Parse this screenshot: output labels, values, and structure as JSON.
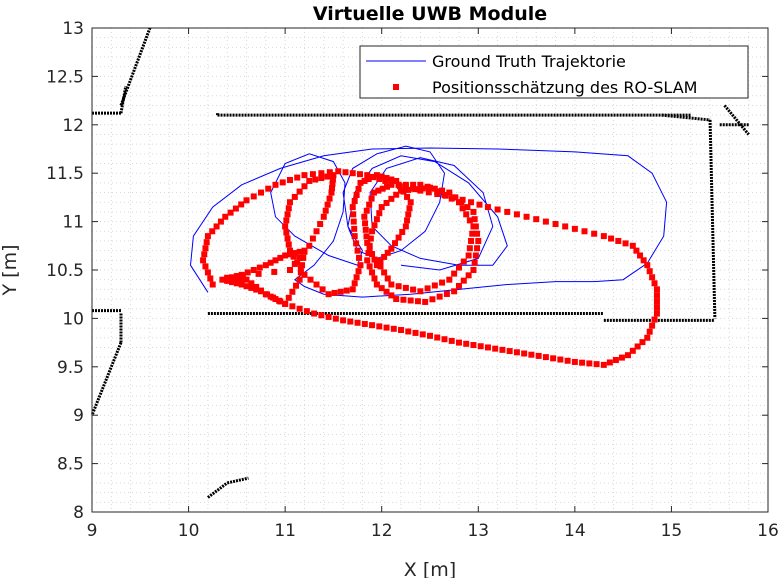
{
  "chart_data": {
    "type": "line",
    "title": "Virtuelle UWB Module",
    "xlabel": "X [m]",
    "ylabel": "Y [m]",
    "xlim": [
      9,
      16
    ],
    "ylim": [
      8,
      13
    ],
    "xticks": [
      "9",
      "10",
      "11",
      "12",
      "13",
      "14",
      "15",
      "16"
    ],
    "yticks": [
      "8",
      "8.5",
      "9",
      "9.5",
      "10",
      "10.5",
      "11",
      "11.5",
      "12",
      "12.5",
      "13"
    ],
    "grid": true,
    "legend_position": "top-right",
    "colors": {
      "ground_truth": "#0000ff",
      "estimate": "#ff0000",
      "map": "#000000"
    },
    "series": [
      {
        "name": "Ground Truth Trajektorie",
        "style": "line",
        "points": [
          [
            10.2,
            10.27
          ],
          [
            10.02,
            10.55
          ],
          [
            10.05,
            10.85
          ],
          [
            10.25,
            11.15
          ],
          [
            10.55,
            11.38
          ],
          [
            10.95,
            11.55
          ],
          [
            11.4,
            11.68
          ],
          [
            11.9,
            11.75
          ],
          [
            12.5,
            11.76
          ],
          [
            13.2,
            11.75
          ],
          [
            14.0,
            11.72
          ],
          [
            14.55,
            11.68
          ],
          [
            14.8,
            11.5
          ],
          [
            14.95,
            11.2
          ],
          [
            14.92,
            10.85
          ],
          [
            14.75,
            10.57
          ],
          [
            14.5,
            10.4
          ],
          [
            14.2,
            10.38
          ],
          [
            13.8,
            10.38
          ],
          [
            13.3,
            10.35
          ],
          [
            12.8,
            10.3
          ],
          [
            12.3,
            10.25
          ],
          [
            11.8,
            10.22
          ],
          [
            11.4,
            10.25
          ],
          [
            11.2,
            10.33
          ],
          [
            11.1,
            10.4
          ],
          [
            11.3,
            10.55
          ],
          [
            11.5,
            10.8
          ],
          [
            11.6,
            11.1
          ],
          [
            11.62,
            11.4
          ],
          [
            11.5,
            11.62
          ],
          [
            11.25,
            11.7
          ],
          [
            11.0,
            11.6
          ],
          [
            10.85,
            11.3
          ],
          [
            10.9,
            11.05
          ],
          [
            11.1,
            10.85
          ],
          [
            11.45,
            10.65
          ],
          [
            11.75,
            10.55
          ],
          [
            11.8,
            10.7
          ],
          [
            11.65,
            10.95
          ],
          [
            11.6,
            11.3
          ],
          [
            11.7,
            11.55
          ],
          [
            11.95,
            11.7
          ],
          [
            12.25,
            11.78
          ],
          [
            12.5,
            11.72
          ],
          [
            12.65,
            11.5
          ],
          [
            12.6,
            11.2
          ],
          [
            12.45,
            10.9
          ],
          [
            12.2,
            10.7
          ],
          [
            11.95,
            10.62
          ],
          [
            11.75,
            10.7
          ],
          [
            11.65,
            10.95
          ],
          [
            11.72,
            11.3
          ],
          [
            11.9,
            11.55
          ],
          [
            12.2,
            11.68
          ],
          [
            12.55,
            11.62
          ],
          [
            12.9,
            11.4
          ],
          [
            13.2,
            11.05
          ],
          [
            13.3,
            10.75
          ],
          [
            13.15,
            10.55
          ],
          [
            12.8,
            10.55
          ],
          [
            12.4,
            10.62
          ],
          [
            12.1,
            10.75
          ],
          [
            11.9,
            10.95
          ],
          [
            11.88,
            11.3
          ],
          [
            12.05,
            11.55
          ],
          [
            12.4,
            11.66
          ],
          [
            12.75,
            11.58
          ],
          [
            13.05,
            11.3
          ],
          [
            13.15,
            10.95
          ],
          [
            13.0,
            10.62
          ],
          [
            12.6,
            10.5
          ],
          [
            12.2,
            10.55
          ]
        ]
      },
      {
        "name": "Positionsschätzung des RO-SLAM",
        "style": "markers",
        "points": [
          [
            10.25,
            10.35
          ],
          [
            10.15,
            10.6
          ],
          [
            10.2,
            10.85
          ],
          [
            10.38,
            11.05
          ],
          [
            10.6,
            11.22
          ],
          [
            10.9,
            11.38
          ],
          [
            11.2,
            11.48
          ],
          [
            11.55,
            11.52
          ],
          [
            11.85,
            11.48
          ],
          [
            12.1,
            11.4
          ],
          [
            12.4,
            11.32
          ],
          [
            12.75,
            11.25
          ],
          [
            13.1,
            11.15
          ],
          [
            13.5,
            11.05
          ],
          [
            13.9,
            10.95
          ],
          [
            14.3,
            10.85
          ],
          [
            14.6,
            10.75
          ],
          [
            14.75,
            10.55
          ],
          [
            14.85,
            10.3
          ],
          [
            14.85,
            10.05
          ],
          [
            14.75,
            9.8
          ],
          [
            14.55,
            9.62
          ],
          [
            14.3,
            9.52
          ],
          [
            14.0,
            9.55
          ],
          [
            13.7,
            9.6
          ],
          [
            13.4,
            9.65
          ],
          [
            13.1,
            9.7
          ],
          [
            12.8,
            9.75
          ],
          [
            12.5,
            9.82
          ],
          [
            12.2,
            9.88
          ],
          [
            11.9,
            9.93
          ],
          [
            11.6,
            9.98
          ],
          [
            11.3,
            10.05
          ],
          [
            11.0,
            10.15
          ],
          [
            10.75,
            10.28
          ],
          [
            10.55,
            10.35
          ],
          [
            10.35,
            10.4
          ],
          [
            10.55,
            10.45
          ],
          [
            10.8,
            10.55
          ],
          [
            11.0,
            10.65
          ],
          [
            11.2,
            10.7
          ],
          [
            11.15,
            10.4
          ],
          [
            11.0,
            10.15
          ],
          [
            10.8,
            10.25
          ],
          [
            10.6,
            10.4
          ],
          [
            10.4,
            10.42
          ],
          [
            11.05,
            10.5
          ],
          [
            11.25,
            10.75
          ],
          [
            11.4,
            11.05
          ],
          [
            11.48,
            11.3
          ],
          [
            11.5,
            11.48
          ],
          [
            11.25,
            11.42
          ],
          [
            11.05,
            11.2
          ],
          [
            11.0,
            10.95
          ],
          [
            11.05,
            10.7
          ],
          [
            11.2,
            10.45
          ],
          [
            11.45,
            10.25
          ],
          [
            11.7,
            10.3
          ],
          [
            11.78,
            10.55
          ],
          [
            11.72,
            10.85
          ],
          [
            11.7,
            11.15
          ],
          [
            11.78,
            11.4
          ],
          [
            11.95,
            11.48
          ],
          [
            12.15,
            11.42
          ],
          [
            12.3,
            11.2
          ],
          [
            12.25,
            10.95
          ],
          [
            12.1,
            10.72
          ],
          [
            11.95,
            10.55
          ],
          [
            11.85,
            10.78
          ],
          [
            11.82,
            11.05
          ],
          [
            11.92,
            11.3
          ],
          [
            12.1,
            11.38
          ],
          [
            12.4,
            11.38
          ],
          [
            12.7,
            11.3
          ],
          [
            12.95,
            11.1
          ],
          [
            13.0,
            10.8
          ],
          [
            12.95,
            10.5
          ],
          [
            12.75,
            10.28
          ],
          [
            12.45,
            10.17
          ],
          [
            12.15,
            10.2
          ],
          [
            11.95,
            10.35
          ],
          [
            11.85,
            10.6
          ],
          [
            11.9,
            10.9
          ],
          [
            12.0,
            11.15
          ],
          [
            12.2,
            11.32
          ],
          [
            12.5,
            11.35
          ],
          [
            12.8,
            11.2
          ],
          [
            12.95,
            10.95
          ],
          [
            12.9,
            10.65
          ],
          [
            12.7,
            10.4
          ],
          [
            12.4,
            10.28
          ],
          [
            12.1,
            10.35
          ],
          [
            11.95,
            10.6
          ]
        ]
      }
    ],
    "map_segments": [
      [
        [
          9.0,
          12.12
        ],
        [
          9.3,
          12.12
        ]
      ],
      [
        [
          9.3,
          12.12
        ],
        [
          9.35,
          12.4
        ]
      ],
      [
        [
          9.3,
          12.2
        ],
        [
          9.6,
          13.0
        ]
      ],
      [
        [
          10.3,
          12.1
        ],
        [
          15.2,
          12.1
        ]
      ],
      [
        [
          10.3,
          12.1
        ],
        [
          10.3,
          12.12
        ]
      ],
      [
        [
          14.9,
          12.1
        ],
        [
          15.4,
          12.05
        ]
      ],
      [
        [
          15.4,
          12.05
        ],
        [
          15.45,
          10.0
        ]
      ],
      [
        [
          15.5,
          12.0
        ],
        [
          15.8,
          12.0
        ]
      ],
      [
        [
          15.55,
          12.2
        ],
        [
          15.8,
          11.9
        ]
      ],
      [
        [
          10.2,
          10.05
        ],
        [
          14.3,
          10.05
        ]
      ],
      [
        [
          14.3,
          9.98
        ],
        [
          15.45,
          9.98
        ]
      ],
      [
        [
          9.0,
          10.08
        ],
        [
          9.3,
          10.08
        ]
      ],
      [
        [
          9.3,
          10.05
        ],
        [
          9.3,
          9.75
        ]
      ],
      [
        [
          9.3,
          9.75
        ],
        [
          9.0,
          9.0
        ]
      ],
      [
        [
          10.2,
          8.15
        ],
        [
          10.4,
          8.3
        ]
      ],
      [
        [
          10.4,
          8.3
        ],
        [
          10.62,
          8.35
        ]
      ]
    ]
  }
}
